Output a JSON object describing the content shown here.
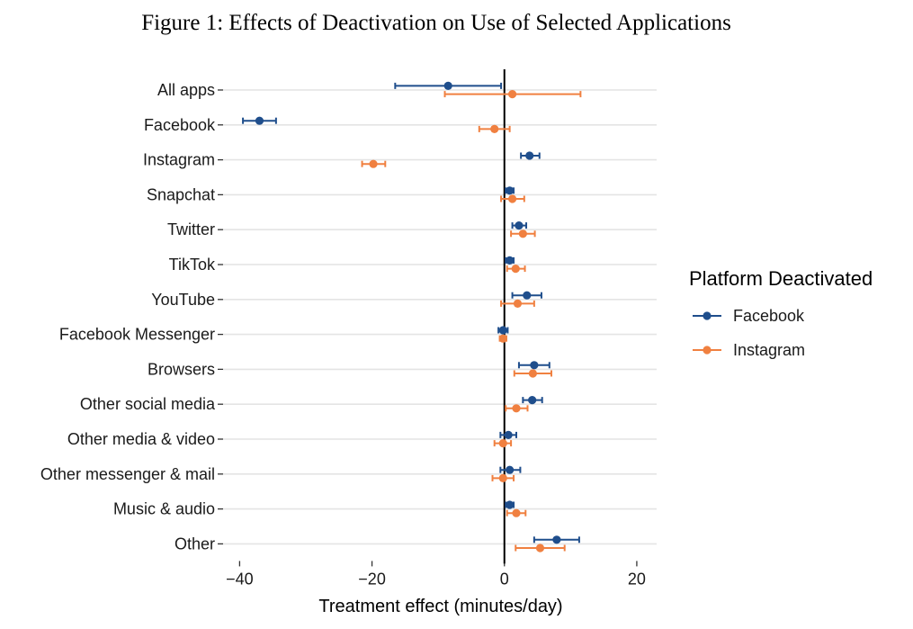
{
  "chart_data": {
    "type": "scatter",
    "subtype": "dot-and-whisker",
    "orientation": "horizontal",
    "title": "Figure 1: Effects of Deactivation on Use of Selected Applications",
    "xlabel": "Treatment effect (minutes/day)",
    "ylabel": "",
    "xlim": [
      -42.5,
      23
    ],
    "x_ticks": [
      -40,
      -20,
      0,
      20
    ],
    "x_tick_labels": [
      "−40",
      "−20",
      "0",
      "20"
    ],
    "reference_line_x": 0,
    "grid": "horizontal",
    "categories": [
      "All apps",
      "Facebook",
      "Instagram",
      "Snapchat",
      "Twitter",
      "TikTok",
      "YouTube",
      "Facebook Messenger",
      "Browsers",
      "Other social media",
      "Other media & video",
      "Other messenger & mail",
      "Music & audio",
      "Other"
    ],
    "legend": {
      "title": "Platform Deactivated",
      "position": "right"
    },
    "series": [
      {
        "name": "Facebook",
        "color": "#1f4e8c",
        "estimates": [
          -8.5,
          -37.0,
          3.8,
          0.8,
          2.2,
          0.8,
          3.4,
          -0.2,
          4.5,
          4.2,
          0.6,
          0.8,
          0.8,
          7.9
        ],
        "ci_low": [
          -16.5,
          -39.5,
          2.5,
          0.2,
          1.2,
          0.2,
          1.2,
          -0.9,
          2.2,
          2.8,
          -0.6,
          -0.6,
          0.2,
          4.5
        ],
        "ci_high": [
          -0.5,
          -34.5,
          5.3,
          1.4,
          3.3,
          1.4,
          5.6,
          0.5,
          6.8,
          5.7,
          1.8,
          2.4,
          1.4,
          11.3
        ]
      },
      {
        "name": "Instagram",
        "color": "#f08040",
        "estimates": [
          1.2,
          -1.5,
          -19.8,
          1.2,
          2.8,
          1.7,
          2.0,
          -0.2,
          4.3,
          1.8,
          -0.2,
          -0.2,
          1.8,
          5.4
        ],
        "ci_low": [
          -9.0,
          -3.8,
          -21.5,
          -0.5,
          1.0,
          0.4,
          -0.5,
          -0.7,
          1.5,
          0.2,
          -1.5,
          -1.8,
          0.4,
          1.7
        ],
        "ci_high": [
          11.5,
          0.8,
          -18.0,
          3.0,
          4.6,
          3.1,
          4.5,
          0.3,
          7.1,
          3.5,
          1.0,
          1.4,
          3.2,
          9.1
        ]
      }
    ]
  }
}
